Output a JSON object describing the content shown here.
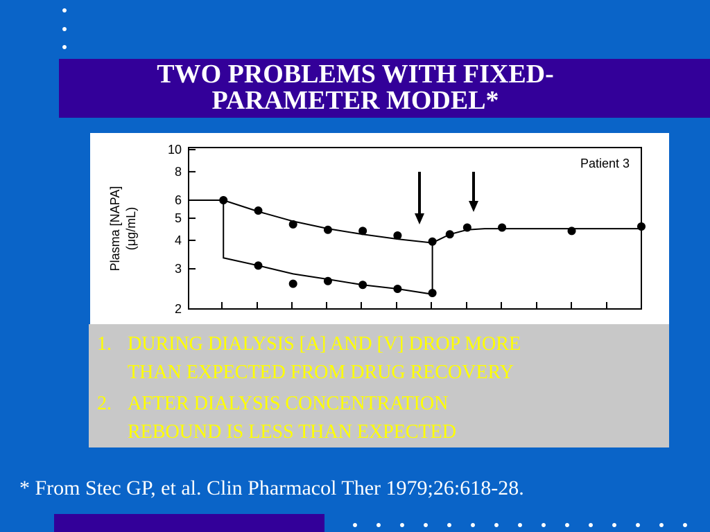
{
  "slide": {
    "title": [
      "TWO PROBLEMS WITH FIXED-",
      "PARAMETER MODEL*"
    ],
    "points": [
      {
        "number": "1.",
        "lines": [
          "DURING DIALYSIS [A] AND [V] DROP MORE",
          "THAN EXPECTED FROM DRUG RECOVERY"
        ]
      },
      {
        "number": "2.",
        "lines": [
          "AFTER DIALYSIS CONCENTRATION",
          "REBOUND IS LESS THAN EXPECTED"
        ]
      }
    ],
    "footnote": "* From Stec GP, et al. Clin Pharmacol Ther 1979;26:618-28."
  },
  "chart_data": {
    "type": "scatter",
    "annotation": "Patient 3",
    "ylabel": [
      "Plasma [NAPA]",
      "(μg/mL)"
    ],
    "ylog": true,
    "xlim": [
      -1,
      12
    ],
    "ylim": [
      2,
      10
    ],
    "yticks": [
      2,
      3,
      4,
      5,
      6,
      8,
      10
    ],
    "series": [
      {
        "type": "line",
        "color": "#000000",
        "x": [
          -1,
          0,
          0,
          1,
          2,
          3,
          4,
          5,
          6,
          6
        ],
        "values": [
          6,
          6,
          3.35,
          3.1,
          2.85,
          2.7,
          2.55,
          2.45,
          2.32,
          3.9
        ]
      },
      {
        "type": "line",
        "color": "#000000",
        "x": [
          0,
          1,
          2,
          3,
          4,
          5,
          6,
          6.5,
          7,
          7.5,
          8,
          12
        ],
        "values": [
          6,
          5.35,
          4.85,
          4.5,
          4.25,
          4.05,
          3.9,
          4.25,
          4.45,
          4.5,
          4.5,
          4.5
        ]
      },
      {
        "type": "scatter",
        "color": "#000000",
        "x": [
          0,
          1,
          2,
          3,
          4,
          5,
          6,
          6.5,
          7,
          8,
          10,
          12
        ],
        "values": [
          6,
          5.4,
          4.7,
          4.45,
          4.4,
          4.2,
          3.95,
          4.25,
          4.55,
          4.55,
          4.4,
          4.6
        ]
      },
      {
        "type": "scatter",
        "color": "#000000",
        "x": [
          1,
          2,
          3,
          4,
          5,
          6
        ],
        "values": [
          3.1,
          2.58,
          2.65,
          2.55,
          2.45,
          2.35
        ]
      }
    ]
  }
}
